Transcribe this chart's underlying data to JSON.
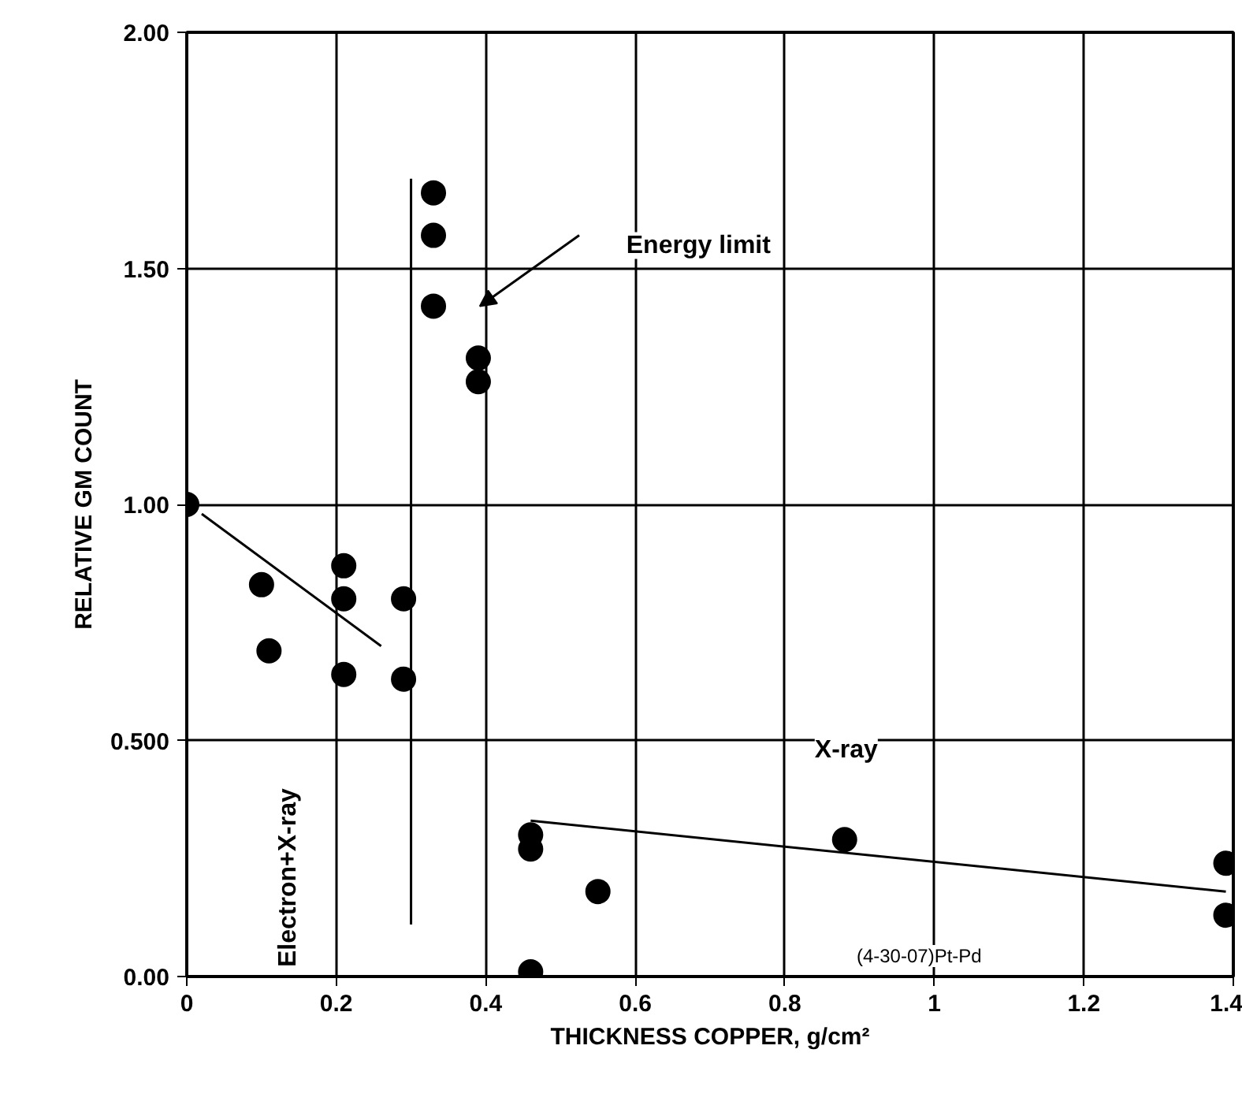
{
  "chart_data": {
    "type": "scatter",
    "xlabel": "THICKNESS COPPER, g/cm²",
    "ylabel": "RELATIVE GM COUNT",
    "grid": true,
    "xlim": [
      0,
      1.4
    ],
    "xticks": [
      0,
      0.2,
      0.4,
      0.6,
      0.8,
      1,
      1.2,
      1.4
    ],
    "ylim": [
      0,
      2
    ],
    "yticks": [
      {
        "value": 0,
        "label": "0.00"
      },
      {
        "value": 0.5,
        "label": "0.500"
      },
      {
        "value": 1,
        "label": "1.00"
      },
      {
        "value": 1.5,
        "label": "1.50"
      },
      {
        "value": 2,
        "label": "2.00"
      }
    ],
    "series": [
      {
        "marker": "circle",
        "color": "#000000",
        "x": [
          0,
          0.1,
          0.11,
          0.21,
          0.21,
          0.21,
          0.29,
          0.29,
          0.33,
          0.33,
          0.33,
          0.39,
          0.39,
          0.46,
          0.46,
          0.46,
          0.55,
          0.88,
          1.39,
          1.39
        ],
        "values": [
          1.0,
          0.83,
          0.69,
          0.87,
          0.8,
          0.64,
          0.8,
          0.63,
          1.66,
          1.57,
          1.42,
          1.31,
          1.26,
          0.3,
          0.27,
          0.01,
          0.18,
          0.29,
          0.24,
          0.13
        ]
      },
      {
        "type": "line",
        "color": "#000000",
        "x": [
          0.02,
          0.26
        ],
        "values": [
          0.98,
          0.7
        ]
      },
      {
        "type": "line",
        "color": "#000000",
        "x": [
          0.46,
          1.39
        ],
        "values": [
          0.33,
          0.18
        ]
      },
      {
        "type": "line",
        "color": "#000000",
        "x": [
          0.3,
          0.3
        ],
        "values": [
          0.11,
          1.69
        ]
      }
    ],
    "annotations": [
      "Energy limit",
      "X-ray",
      "Electron+X-ray",
      "(4-30-07)Pt-Pd"
    ]
  }
}
